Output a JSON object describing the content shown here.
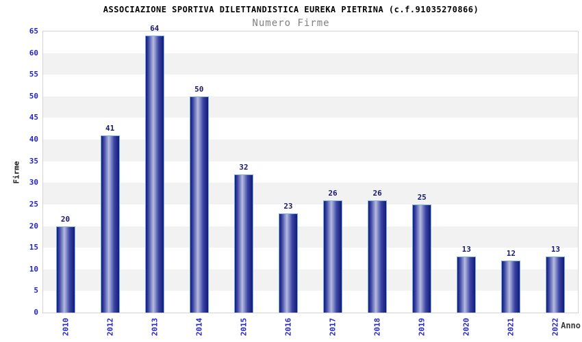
{
  "chart_data": {
    "type": "bar",
    "title": "ASSOCIAZIONE SPORTIVA DILETTANDISTICA EUREKA PIETRINA (c.f.91035270866)",
    "subtitle": "Numero Firme",
    "xlabel": "Anno",
    "ylabel": "Firme",
    "categories": [
      "2010",
      "2012",
      "2013",
      "2014",
      "2015",
      "2016",
      "2017",
      "2018",
      "2019",
      "2020",
      "2021",
      "2022"
    ],
    "values": [
      20,
      41,
      64,
      50,
      32,
      23,
      26,
      26,
      25,
      13,
      12,
      13
    ],
    "ylim": [
      0,
      65
    ],
    "ytick_step": 5,
    "grid": "alternating horizontal bands every 5 units",
    "legend": "none",
    "x_tick_rotation": -90,
    "colors": {
      "bar_dark": "#131a78",
      "bar_mid": "#3a44a4",
      "bar_light": "#b6bce0",
      "bar_border": "#7ab0e8",
      "axis_tick_label": "#2323cc",
      "value_label": "#181868",
      "band_gray": "#f2f2f2",
      "band_white": "#ffffff",
      "plot_border": "#d4d4d4",
      "title_color": "#000000",
      "subtitle_color": "#808080",
      "xlabel_color": "#3c3c3c",
      "ylabel_color": "#1a1a1a"
    }
  }
}
